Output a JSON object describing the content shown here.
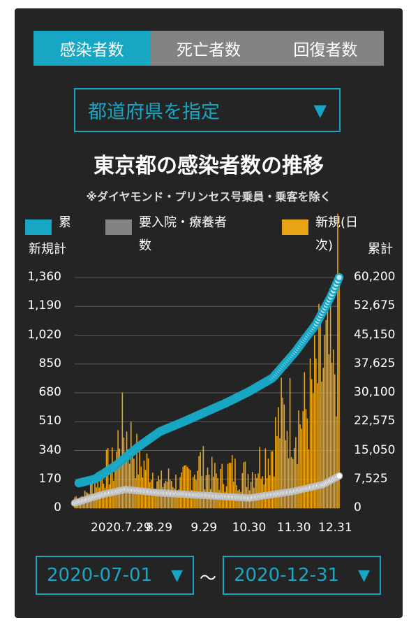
{
  "tabs": [
    {
      "label": "感染者数",
      "active": true
    },
    {
      "label": "死亡者数",
      "active": false
    },
    {
      "label": "回復者数",
      "active": false
    }
  ],
  "prefecture_select": {
    "label": "都道府県を指定",
    "arrow": "▼"
  },
  "colors": {
    "accent": "#17a6c4",
    "bars": "#e8a316",
    "hospitalized": "#ffffff",
    "tab_inactive": "#838383",
    "panel": "#242424"
  },
  "chart_data": {
    "type": "bar",
    "title": "東京都の感染者数の推移",
    "subtitle": "※ダイヤモンド・プリンセス号乗員・乗客を除く",
    "legend": [
      {
        "label_lines": [
          "累",
          "計"
        ],
        "color": "#17a6c4"
      },
      {
        "label_lines": [
          "要入院・療養者",
          "数"
        ],
        "color": "#838383"
      },
      {
        "label_lines": [
          "新規(日",
          "次)"
        ],
        "color": "#e8a316"
      }
    ],
    "left_axis_label": "新規",
    "right_axis_label": "累計",
    "left_ticks": [
      "0",
      "170",
      "340",
      "510",
      "680",
      "850",
      "1,020",
      "1,190",
      "1,360"
    ],
    "right_ticks": [
      "0",
      "7,525",
      "15,050",
      "22,575",
      "30,100",
      "37,625",
      "45,150",
      "52,675",
      "60,200"
    ],
    "x_ticks": [
      "2020.7.29",
      "8.29",
      "9.29",
      "10.30",
      "11.30",
      "12.31"
    ],
    "ylim_left": [
      0,
      1360
    ],
    "ylim_right": [
      0,
      60200
    ],
    "series": [
      {
        "name": "新規(日次)",
        "axis": "left",
        "type": "bar",
        "points": [
          [
            "07-01",
            67
          ],
          [
            "07-08",
            75
          ],
          [
            "07-15",
            165
          ],
          [
            "07-22",
            238
          ],
          [
            "07-29",
            250
          ],
          [
            "08-01",
            472
          ],
          [
            "08-08",
            429
          ],
          [
            "08-15",
            260
          ],
          [
            "08-22",
            258
          ],
          [
            "08-29",
            148
          ],
          [
            "09-05",
            181
          ],
          [
            "09-12",
            146
          ],
          [
            "09-19",
            218
          ],
          [
            "09-26",
            270
          ],
          [
            "10-03",
            207
          ],
          [
            "10-10",
            180
          ],
          [
            "10-17",
            234
          ],
          [
            "10-24",
            203
          ],
          [
            "10-31",
            209
          ],
          [
            "11-07",
            294
          ],
          [
            "11-14",
            352
          ],
          [
            "11-21",
            539
          ],
          [
            "11-28",
            561
          ],
          [
            "12-03",
            533
          ],
          [
            "12-10",
            602
          ],
          [
            "12-17",
            822
          ],
          [
            "12-24",
            888
          ],
          [
            "12-27",
            708
          ],
          [
            "12-31",
            1337
          ]
        ]
      },
      {
        "name": "累計",
        "axis": "right",
        "type": "line",
        "points": [
          [
            "07-01",
            6300
          ],
          [
            "07-15",
            7600
          ],
          [
            "07-29",
            11000
          ],
          [
            "08-14",
            16000
          ],
          [
            "08-29",
            20000
          ],
          [
            "09-14",
            22500
          ],
          [
            "09-29",
            25000
          ],
          [
            "10-14",
            27500
          ],
          [
            "10-30",
            30500
          ],
          [
            "11-15",
            34000
          ],
          [
            "11-30",
            40500
          ],
          [
            "12-15",
            48000
          ],
          [
            "12-25",
            55000
          ],
          [
            "12-31",
            60200
          ]
        ]
      },
      {
        "name": "要入院・療養者数",
        "axis": "left",
        "type": "line",
        "points": [
          [
            "07-01",
            30
          ],
          [
            "07-20",
            80
          ],
          [
            "08-05",
            110
          ],
          [
            "08-29",
            90
          ],
          [
            "09-29",
            75
          ],
          [
            "10-30",
            60
          ],
          [
            "11-30",
            100
          ],
          [
            "12-20",
            140
          ],
          [
            "12-31",
            190
          ]
        ]
      }
    ]
  },
  "date_from": {
    "value": "2020-07-01",
    "arrow": "▼"
  },
  "date_to": {
    "value": "2020-12-31",
    "arrow": "▼"
  },
  "range_separator": "〜"
}
